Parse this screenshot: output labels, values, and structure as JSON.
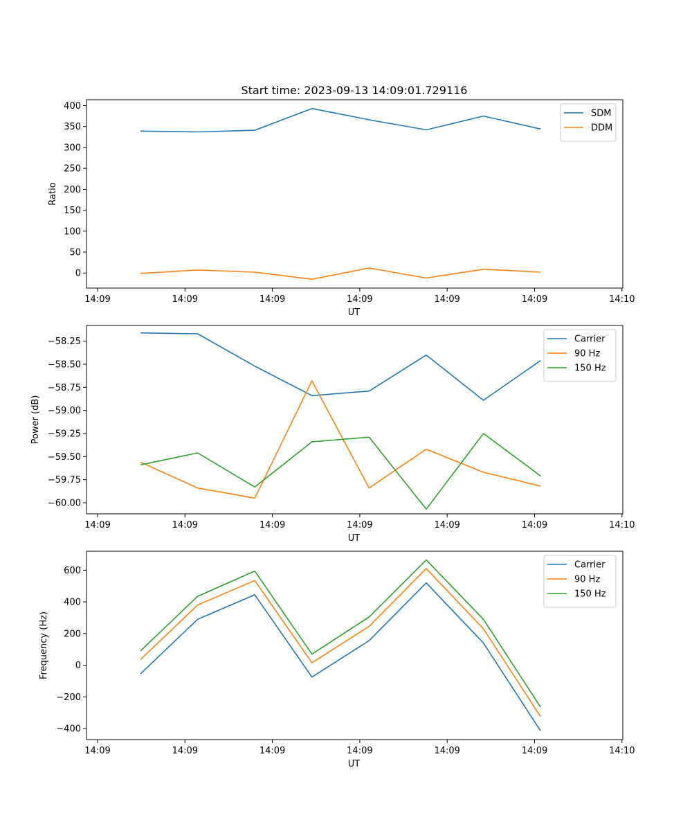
{
  "title": "Start time: 2023-09-13 14:09:01.729116",
  "colors": {
    "blue": "#1f77b4",
    "orange": "#ff7f0e",
    "green": "#2ca02c"
  },
  "chart_data": [
    {
      "type": "line",
      "title": "Start time: 2023-09-13 14:09:01.729116",
      "xlabel": "UT",
      "ylabel": "Ratio",
      "x_tick_labels": [
        "14:09",
        "14:09",
        "14:09",
        "14:09",
        "14:09",
        "14:09",
        "14:10"
      ],
      "x": [
        1,
        2,
        3,
        4,
        5,
        6,
        7,
        8
      ],
      "xlim": [
        0.5,
        9.65
      ],
      "y_ticks": [
        "400",
        "350",
        "300",
        "250",
        "200",
        "150",
        "100",
        "50",
        "0"
      ],
      "ylim": [
        -36,
        414
      ],
      "legend_position": "top-right",
      "series": [
        {
          "name": "SDM",
          "color": "#1f77b4",
          "values": [
            339,
            337,
            341,
            393,
            366,
            342,
            375,
            344
          ]
        },
        {
          "name": "DDM",
          "color": "#ff7f0e",
          "values": [
            -1,
            7,
            2,
            -15,
            12,
            -12,
            9,
            2
          ]
        }
      ]
    },
    {
      "type": "line",
      "title": "",
      "xlabel": "UT",
      "ylabel": "Power (dB)",
      "x_tick_labels": [
        "14:09",
        "14:09",
        "14:09",
        "14:09",
        "14:09",
        "14:09",
        "14:10"
      ],
      "x": [
        1,
        2,
        3,
        4,
        5,
        6,
        7,
        8
      ],
      "xlim": [
        0.5,
        9.65
      ],
      "y_ticks": [
        "−58.25",
        "−58.50",
        "−58.75",
        "−59.00",
        "−59.25",
        "−59.50",
        "−59.75",
        "−60.00"
      ],
      "ylim": [
        -60.12,
        -58.08
      ],
      "legend_position": "top-right",
      "series": [
        {
          "name": "Carrier",
          "color": "#1f77b4",
          "values": [
            -58.16,
            -58.17,
            -58.52,
            -58.84,
            -58.79,
            -58.4,
            -58.89,
            -58.46
          ]
        },
        {
          "name": "90 Hz",
          "color": "#ff7f0e",
          "values": [
            -59.56,
            -59.84,
            -59.95,
            -58.68,
            -59.84,
            -59.42,
            -59.67,
            -59.82
          ]
        },
        {
          "name": "150 Hz",
          "color": "#2ca02c",
          "values": [
            -59.59,
            -59.46,
            -59.83,
            -59.34,
            -59.29,
            -60.07,
            -59.25,
            -59.71
          ]
        }
      ]
    },
    {
      "type": "line",
      "title": "",
      "xlabel": "UT",
      "ylabel": "Frequency (Hz)",
      "x_tick_labels": [
        "14:09",
        "14:09",
        "14:09",
        "14:09",
        "14:09",
        "14:09",
        "14:10"
      ],
      "x": [
        1,
        2,
        3,
        4,
        5,
        6,
        7,
        8
      ],
      "xlim": [
        0.5,
        9.65
      ],
      "y_ticks": [
        "600",
        "400",
        "200",
        "0",
        "−200",
        "−400"
      ],
      "ylim": [
        -470,
        720
      ],
      "legend_position": "top-right",
      "series": [
        {
          "name": "Carrier",
          "color": "#1f77b4",
          "values": [
            -55,
            290,
            445,
            -75,
            155,
            520,
            140,
            -415
          ]
        },
        {
          "name": "90 Hz",
          "color": "#ff7f0e",
          "values": [
            35,
            380,
            535,
            15,
            245,
            610,
            230,
            -325
          ]
        },
        {
          "name": "150 Hz",
          "color": "#2ca02c",
          "values": [
            90,
            435,
            595,
            70,
            305,
            665,
            290,
            -265
          ]
        }
      ]
    }
  ]
}
